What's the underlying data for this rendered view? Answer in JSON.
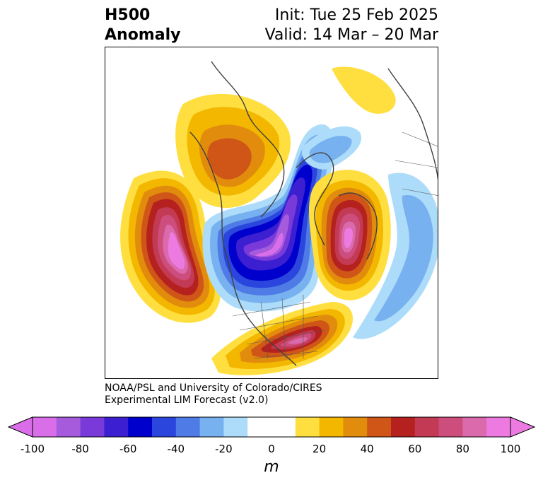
{
  "title": {
    "left_line1": "H500",
    "left_line2": "Anomaly",
    "right_line1": "Init: Tue 25 Feb 2025",
    "right_line2": "Valid: 14 Mar – 20 Mar"
  },
  "credit": {
    "line1": "NOAA/PSL and University of Colorado/CIRES",
    "line2": "Experimental LIM Forecast (v2.0)"
  },
  "colorbar": {
    "unit": "m",
    "tick_labels": [
      "-100",
      "-80",
      "-60",
      "-40",
      "-20",
      "0",
      "20",
      "40",
      "60",
      "80",
      "100"
    ],
    "colors": [
      "#d96ee8",
      "#a55bdc",
      "#7a3ad9",
      "#3c1fd0",
      "#0000cc",
      "#2a46dd",
      "#4e7be6",
      "#78b1ef",
      "#acdcf9",
      "#ffffff",
      "#ffffff",
      "#ffdf40",
      "#f3b700",
      "#e28c0d",
      "#cf5617",
      "#b5211f",
      "#c33a54",
      "#cd4d7c",
      "#da6aac",
      "#ec7ae0"
    ],
    "under_color": "#d96ee8",
    "over_color": "#ec7ae0"
  },
  "map": {
    "projection": "polar-stereographic",
    "coastline_color": "#404040",
    "anomaly_features": [
      {
        "name": "pacific-ridge",
        "sign": "positive",
        "max_m": 100
      },
      {
        "name": "alaska-ridge",
        "sign": "positive",
        "max_m": 40
      },
      {
        "name": "atlantic-ridge",
        "sign": "positive",
        "max_m": 100
      },
      {
        "name": "southeast-us-ridge",
        "sign": "positive",
        "max_m": 80
      },
      {
        "name": "canada-arctic-trough",
        "sign": "negative",
        "max_m": -100
      },
      {
        "name": "europe-trough",
        "sign": "negative",
        "max_m": -30
      }
    ]
  }
}
